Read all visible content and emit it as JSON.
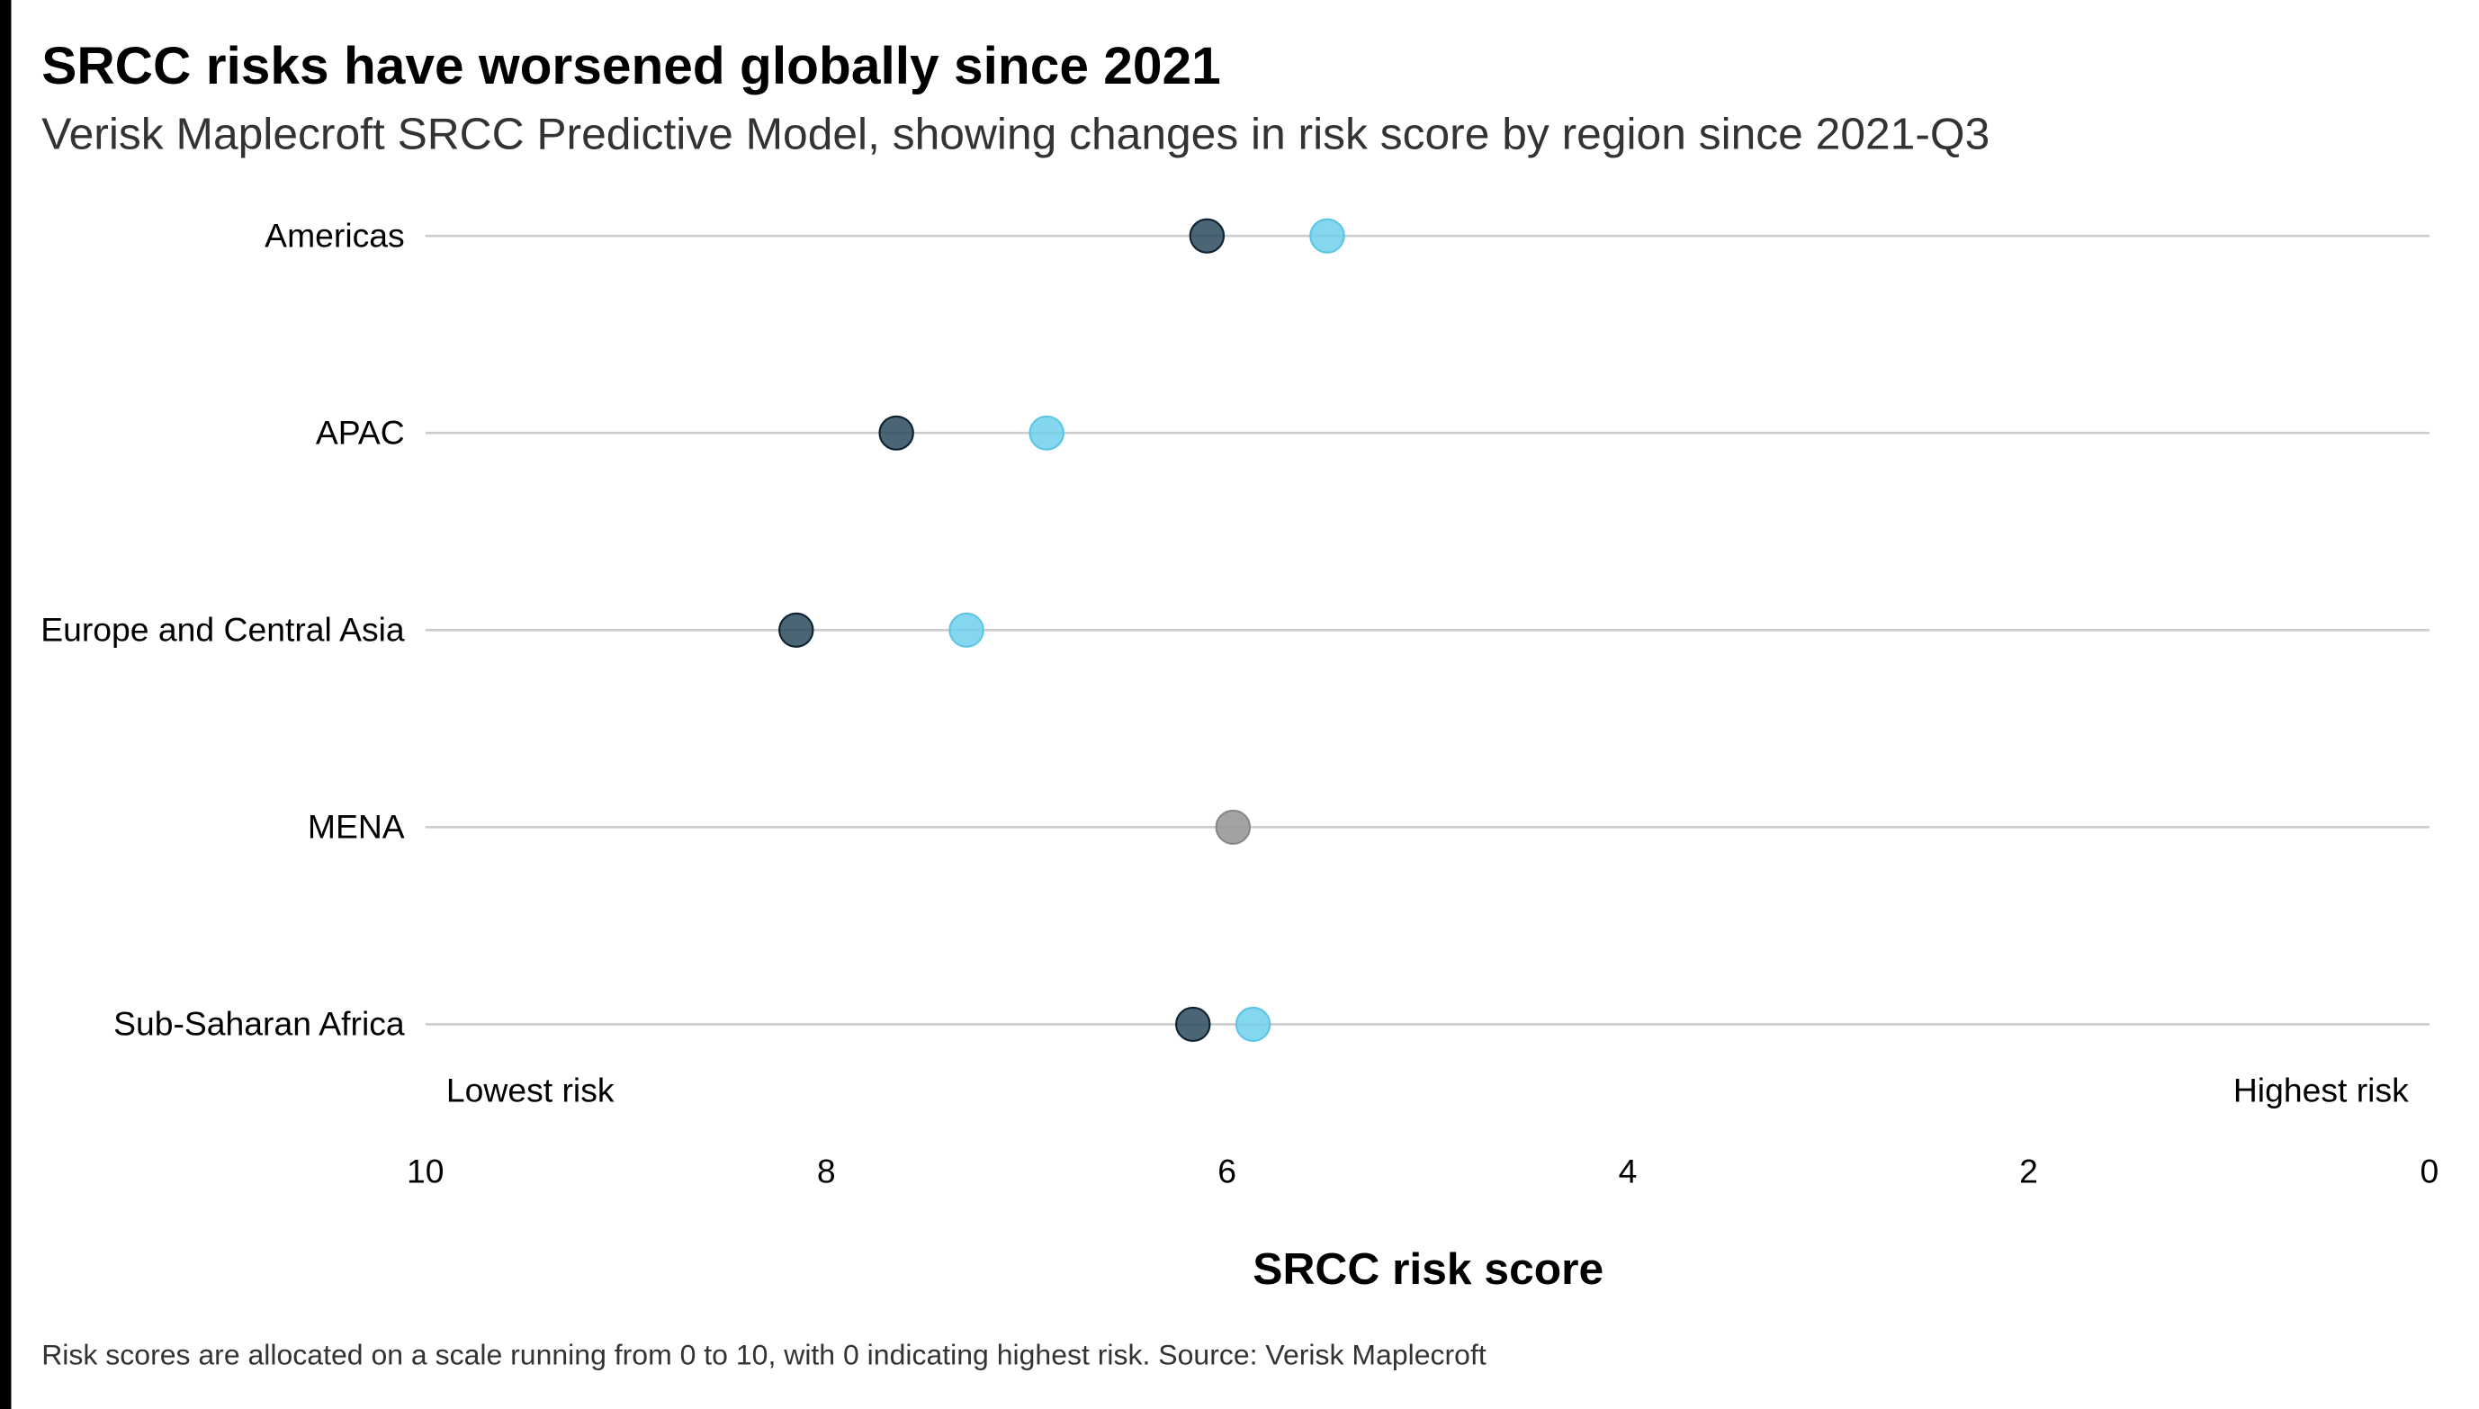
{
  "chart_data": {
    "type": "scatter",
    "subtype": "dumbbell",
    "title": "SRCC risks have worsened globally since 2021",
    "subtitle": "Verisk Maplecroft SRCC Predictive Model, showing changes in risk score by region since 2021-Q3",
    "xlabel": "SRCC risk score",
    "xlim": [
      10,
      0
    ],
    "x_reversed": true,
    "xticks": [
      "10",
      "8",
      "6",
      "4",
      "2",
      "0"
    ],
    "annotations": {
      "left": "Lowest risk",
      "right": "Highest risk"
    },
    "footnote": "Risk scores are allocated on a scale running from 0 to 10, with 0 indicating highest risk. Source: Verisk Maplecroft",
    "grid": "horizontal",
    "colors": {
      "earlier": "#2c4a5c",
      "later": "#6fd0eb",
      "unchanged": "#999999",
      "grid": "#cccccc"
    },
    "categories": [
      "Americas",
      "APAC",
      "Europe and Central Asia",
      "MENA",
      "Sub-Saharan Africa"
    ],
    "points": [
      {
        "region": "Americas",
        "earlier": 6.1,
        "later": 5.5
      },
      {
        "region": "APAC",
        "earlier": 7.65,
        "later": 6.9
      },
      {
        "region": "Europe and Central Asia",
        "earlier": 8.15,
        "later": 7.3
      },
      {
        "region": "MENA",
        "unchanged": 5.97
      },
      {
        "region": "Sub-Saharan Africa",
        "earlier": 6.17,
        "later": 5.87
      }
    ]
  }
}
